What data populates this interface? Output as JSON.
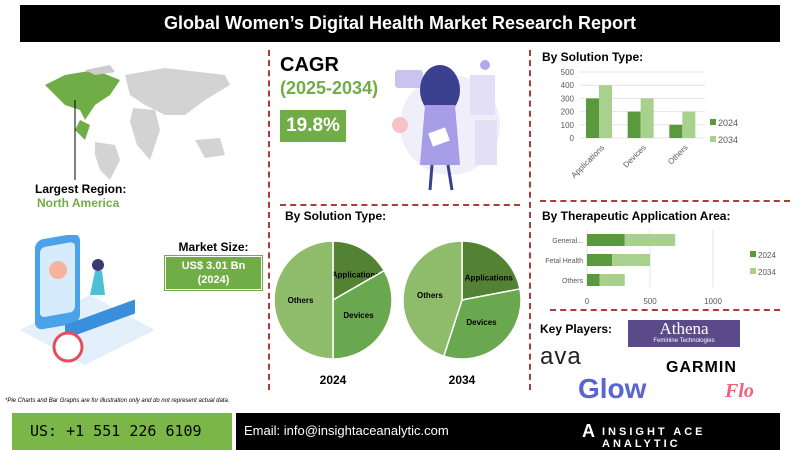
{
  "header": {
    "title": "Global Women’s Digital Health Market Research Report"
  },
  "region": {
    "label": "Largest Region:",
    "value": "North America"
  },
  "market_size": {
    "label": "Market Size:",
    "value": "US$ 3.01 Bn",
    "year": "(2024)"
  },
  "cagr": {
    "label": "CAGR",
    "period": "(2025-2034)",
    "value": "19.8%"
  },
  "pie_section": {
    "title": "By Solution Type:"
  },
  "bar_section": {
    "title": "By Solution Type:"
  },
  "hbar_section": {
    "title": "By Therapeutic Application Area:"
  },
  "key_players": {
    "title": "Key Players:",
    "logos": [
      "Athena",
      "Feminine Technologies",
      "ava",
      "GARMIN",
      "Glow",
      "Flo"
    ]
  },
  "footnote": "*Pie Charts and Bar Graphs are for illustration only and do not represent actual data.",
  "footer": {
    "phone": "US: +1 551 226 6109",
    "email": "Email: info@insightaceanalytic.com",
    "brand": "INSIGHT ACE ANALYTIC"
  },
  "colors": {
    "dark_green": "#5b9a3c",
    "light_green": "#a9d18e",
    "mid_green": "#70ad47",
    "pie_apps": "#548235",
    "pie_devices": "#6aa84f",
    "pie_others": "#8fbc6a",
    "divider": "#b03a3a"
  },
  "chart_data": [
    {
      "type": "pie",
      "title": "2024",
      "labels": [
        "Applications",
        "Devices",
        "Others"
      ],
      "values": [
        16.7,
        33.3,
        50
      ]
    },
    {
      "type": "pie",
      "title": "2034",
      "labels": [
        "Applications",
        "Devices",
        "Others"
      ],
      "values": [
        22,
        33,
        45
      ]
    },
    {
      "type": "bar",
      "categories": [
        "Applications",
        "Devices",
        "Others"
      ],
      "series": [
        {
          "name": "2024",
          "values": [
            300,
            200,
            100
          ]
        },
        {
          "name": "2034",
          "values": [
            400,
            300,
            200
          ]
        }
      ],
      "ylim": [
        0,
        500
      ],
      "yticks": [
        0,
        100,
        200,
        300,
        400,
        500
      ],
      "grid": true,
      "legend": "right"
    },
    {
      "type": "bar",
      "orientation": "horizontal",
      "stacked": true,
      "categories": [
        "General...",
        "Fetal Health",
        "Others"
      ],
      "series": [
        {
          "name": "2024",
          "values": [
            300,
            200,
            100
          ]
        },
        {
          "name": "2034",
          "values": [
            400,
            300,
            200
          ]
        }
      ],
      "xlim": [
        0,
        1000
      ],
      "xticks": [
        0,
        500,
        1000
      ],
      "grid": true,
      "legend": "right"
    }
  ]
}
